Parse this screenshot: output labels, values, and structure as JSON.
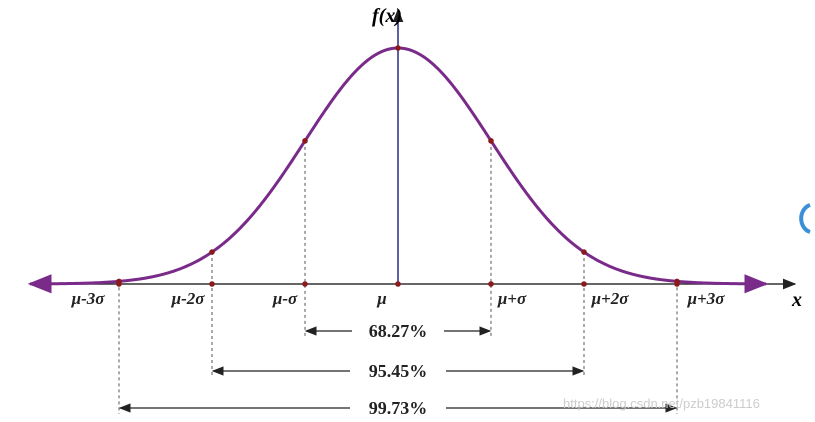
{
  "axis": {
    "y_label": "f(x)",
    "x_label": "x"
  },
  "ticks": [
    "μ-3σ",
    "μ-2σ",
    "μ-σ",
    "μ",
    "μ+σ",
    "μ+2σ",
    "μ+3σ"
  ],
  "intervals": [
    "68.27%",
    "95.45%",
    "99.73%"
  ],
  "watermark": "https://blog.csdn.net/pzb19841116"
}
